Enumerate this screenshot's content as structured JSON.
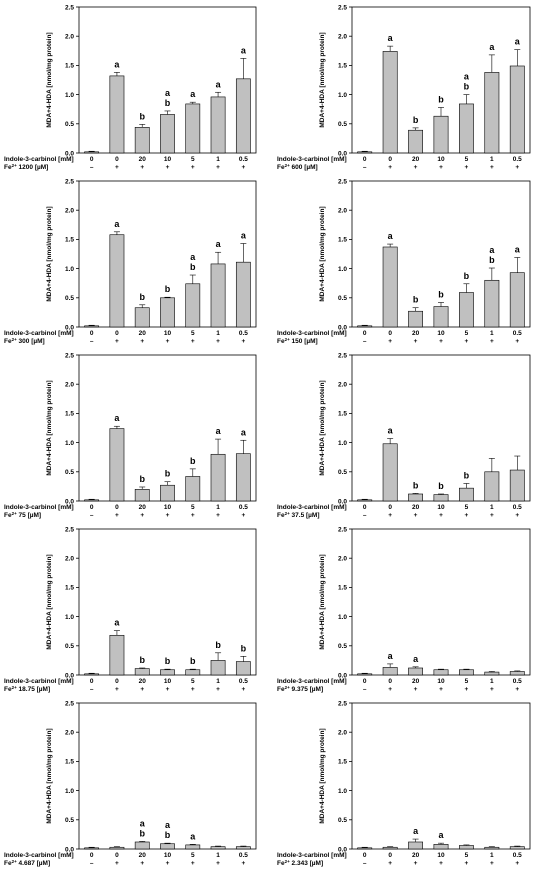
{
  "ylabel": "MDA+4-HDA [nmol/mg protein]",
  "xrow1_label": "Indole-3-carbinol [mM]",
  "fe_prefix": "Fe",
  "fe_sup": "2+",
  "fe_unit": "[µM]",
  "yticks": [
    "0.0",
    "0.5",
    "1.0",
    "1.5",
    "2.0",
    "2.5"
  ],
  "categories": [
    "0",
    "0",
    "20",
    "10",
    "5",
    "1",
    "0.5"
  ],
  "fe_signs": [
    "–",
    "+",
    "+",
    "+",
    "+",
    "+",
    "+"
  ],
  "chart_data": [
    {
      "type": "bar",
      "fe_conc": "1200",
      "ylim": [
        0,
        2.5
      ],
      "categories": [
        "0",
        "0",
        "20",
        "10",
        "5",
        "1",
        "0.5"
      ],
      "values": [
        0.02,
        1.32,
        0.44,
        0.66,
        0.84,
        0.96,
        1.27
      ],
      "errors": [
        0.01,
        0.06,
        0.05,
        0.06,
        0.03,
        0.08,
        0.35
      ],
      "labels": [
        "",
        "a",
        "b",
        "a\nb",
        "a",
        "a",
        "a"
      ]
    },
    {
      "type": "bar",
      "fe_conc": "600",
      "ylim": [
        0,
        2.5
      ],
      "categories": [
        "0",
        "0",
        "20",
        "10",
        "5",
        "1",
        "0.5"
      ],
      "values": [
        0.02,
        1.74,
        0.39,
        0.63,
        0.84,
        1.38,
        1.49
      ],
      "errors": [
        0.01,
        0.09,
        0.04,
        0.15,
        0.16,
        0.3,
        0.28
      ],
      "labels": [
        "",
        "a",
        "b",
        "b",
        "a\nb",
        "a",
        "a"
      ]
    },
    {
      "type": "bar",
      "fe_conc": "300",
      "ylim": [
        0,
        2.5
      ],
      "categories": [
        "0",
        "0",
        "20",
        "10",
        "5",
        "1",
        "0.5"
      ],
      "values": [
        0.02,
        1.58,
        0.33,
        0.5,
        0.74,
        1.08,
        1.11
      ],
      "errors": [
        0.01,
        0.05,
        0.05,
        0.01,
        0.15,
        0.2,
        0.32
      ],
      "labels": [
        "",
        "a",
        "b",
        "b",
        "a\nb",
        "a",
        "a"
      ]
    },
    {
      "type": "bar",
      "fe_conc": "150",
      "ylim": [
        0,
        2.5
      ],
      "categories": [
        "0",
        "0",
        "20",
        "10",
        "5",
        "1",
        "0.5"
      ],
      "values": [
        0.02,
        1.37,
        0.27,
        0.35,
        0.59,
        0.8,
        0.93
      ],
      "errors": [
        0.01,
        0.05,
        0.06,
        0.07,
        0.15,
        0.21,
        0.26
      ],
      "labels": [
        "",
        "a",
        "b",
        "b",
        "b",
        "a\nb",
        "a"
      ]
    },
    {
      "type": "bar",
      "fe_conc": "75",
      "ylim": [
        0,
        2.5
      ],
      "categories": [
        "0",
        "0",
        "20",
        "10",
        "5",
        "1",
        "0.5"
      ],
      "values": [
        0.02,
        1.24,
        0.2,
        0.27,
        0.42,
        0.8,
        0.81
      ],
      "errors": [
        0.01,
        0.04,
        0.04,
        0.06,
        0.13,
        0.26,
        0.23
      ],
      "labels": [
        "",
        "a",
        "b",
        "b",
        "b",
        "a",
        "a"
      ]
    },
    {
      "type": "bar",
      "fe_conc": "37.5",
      "ylim": [
        0,
        2.5
      ],
      "categories": [
        "0",
        "0",
        "20",
        "10",
        "5",
        "1",
        "0.5"
      ],
      "values": [
        0.02,
        0.98,
        0.12,
        0.11,
        0.22,
        0.5,
        0.53
      ],
      "errors": [
        0.01,
        0.09,
        0.01,
        0.01,
        0.08,
        0.23,
        0.24
      ],
      "labels": [
        "",
        "a",
        "b",
        "b",
        "b",
        "",
        ""
      ]
    },
    {
      "type": "bar",
      "fe_conc": "18.75",
      "ylim": [
        0,
        2.5
      ],
      "categories": [
        "0",
        "0",
        "20",
        "10",
        "5",
        "1",
        "0.5"
      ],
      "values": [
        0.02,
        0.68,
        0.11,
        0.09,
        0.09,
        0.25,
        0.23
      ],
      "errors": [
        0.01,
        0.08,
        0.01,
        0.01,
        0.01,
        0.13,
        0.09
      ],
      "labels": [
        "",
        "a",
        "b",
        "b",
        "b",
        "b",
        "b"
      ]
    },
    {
      "type": "bar",
      "fe_conc": "9.375",
      "ylim": [
        0,
        2.5
      ],
      "categories": [
        "0",
        "0",
        "20",
        "10",
        "5",
        "1",
        "0.5"
      ],
      "values": [
        0.02,
        0.13,
        0.12,
        0.09,
        0.09,
        0.05,
        0.06
      ],
      "errors": [
        0.01,
        0.06,
        0.02,
        0.01,
        0.01,
        0.01,
        0.01
      ],
      "labels": [
        "",
        "a",
        "a",
        "",
        "",
        "",
        ""
      ]
    },
    {
      "type": "bar",
      "fe_conc": "4.687",
      "ylim": [
        0,
        2.5
      ],
      "categories": [
        "0",
        "0",
        "20",
        "10",
        "5",
        "1",
        "0.5"
      ],
      "values": [
        0.02,
        0.03,
        0.12,
        0.09,
        0.07,
        0.04,
        0.04
      ],
      "errors": [
        0.01,
        0.01,
        0.01,
        0.01,
        0.01,
        0.01,
        0.01
      ],
      "labels": [
        "",
        "",
        "a\nb",
        "a\nb",
        "a",
        "",
        ""
      ]
    },
    {
      "type": "bar",
      "fe_conc": "2.343",
      "ylim": [
        0,
        2.5
      ],
      "categories": [
        "0",
        "0",
        "20",
        "10",
        "5",
        "1",
        "0.5"
      ],
      "values": [
        0.02,
        0.03,
        0.12,
        0.08,
        0.06,
        0.03,
        0.04
      ],
      "errors": [
        0.01,
        0.01,
        0.05,
        0.02,
        0.01,
        0.01,
        0.01
      ],
      "labels": [
        "",
        "",
        "a",
        "a",
        "",
        "",
        ""
      ]
    }
  ]
}
